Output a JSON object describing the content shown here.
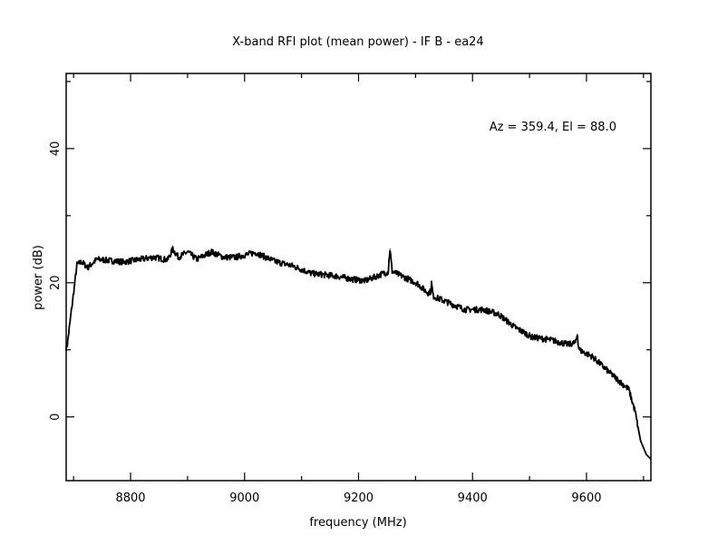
{
  "chart_data": {
    "type": "line",
    "title": "X-band RFI plot (mean power) - IF B - ea24",
    "xlabel": "frequency (MHz)",
    "ylabel": "power (dB)",
    "annotation": "Az = 359.4, El = 88.0",
    "legend": "none",
    "grid": false,
    "xlim": [
      8687,
      9713
    ],
    "ylim": [
      -9.5,
      51.2
    ],
    "xticks": [
      8800,
      9000,
      9200,
      9400,
      9600
    ],
    "xtick_labels": [
      "8800",
      "9000",
      "9200",
      "9400",
      "9600"
    ],
    "xminor_step": 100,
    "yticks": [
      0,
      20,
      40
    ],
    "ytick_labels": [
      "0",
      "20",
      "40"
    ],
    "yminor_step": 10,
    "series": [
      {
        "name": "mean power",
        "color": "#000000",
        "points": [
          [
            8687,
            10.3
          ],
          [
            8689,
            10.8
          ],
          [
            8706,
            22.7
          ],
          [
            8714,
            23.1
          ],
          [
            8725,
            22.3
          ],
          [
            8741,
            23.5
          ],
          [
            8788,
            23.1
          ],
          [
            8841,
            23.8
          ],
          [
            8865,
            23.4
          ],
          [
            8874,
            25.0
          ],
          [
            8884,
            23.8
          ],
          [
            8900,
            24.6
          ],
          [
            8916,
            23.5
          ],
          [
            8942,
            24.6
          ],
          [
            8963,
            23.8
          ],
          [
            8984,
            23.8
          ],
          [
            9019,
            24.5
          ],
          [
            9053,
            23.2
          ],
          [
            9085,
            22.5
          ],
          [
            9117,
            21.4
          ],
          [
            9160,
            21.0
          ],
          [
            9191,
            20.5
          ],
          [
            9212,
            20.3
          ],
          [
            9244,
            21.4
          ],
          [
            9252,
            21.6
          ],
          [
            9255,
            25.0
          ],
          [
            9259,
            21.7
          ],
          [
            9266,
            21.4
          ],
          [
            9303,
            19.9
          ],
          [
            9321,
            18.5
          ],
          [
            9327,
            18.7
          ],
          [
            9328,
            20.0
          ],
          [
            9331,
            18.0
          ],
          [
            9350,
            17.3
          ],
          [
            9387,
            16.0
          ],
          [
            9419,
            16.0
          ],
          [
            9446,
            15.3
          ],
          [
            9472,
            13.5
          ],
          [
            9504,
            11.9
          ],
          [
            9536,
            11.5
          ],
          [
            9568,
            10.8
          ],
          [
            9581,
            11.1
          ],
          [
            9584,
            12.3
          ],
          [
            9586,
            10.4
          ],
          [
            9589,
            9.9
          ],
          [
            9610,
            9.0
          ],
          [
            9642,
            6.5
          ],
          [
            9674,
            4.1
          ],
          [
            9685,
            0.9
          ],
          [
            9695,
            -3.6
          ],
          [
            9705,
            -5.6
          ],
          [
            9713,
            -6.3
          ]
        ]
      }
    ]
  }
}
